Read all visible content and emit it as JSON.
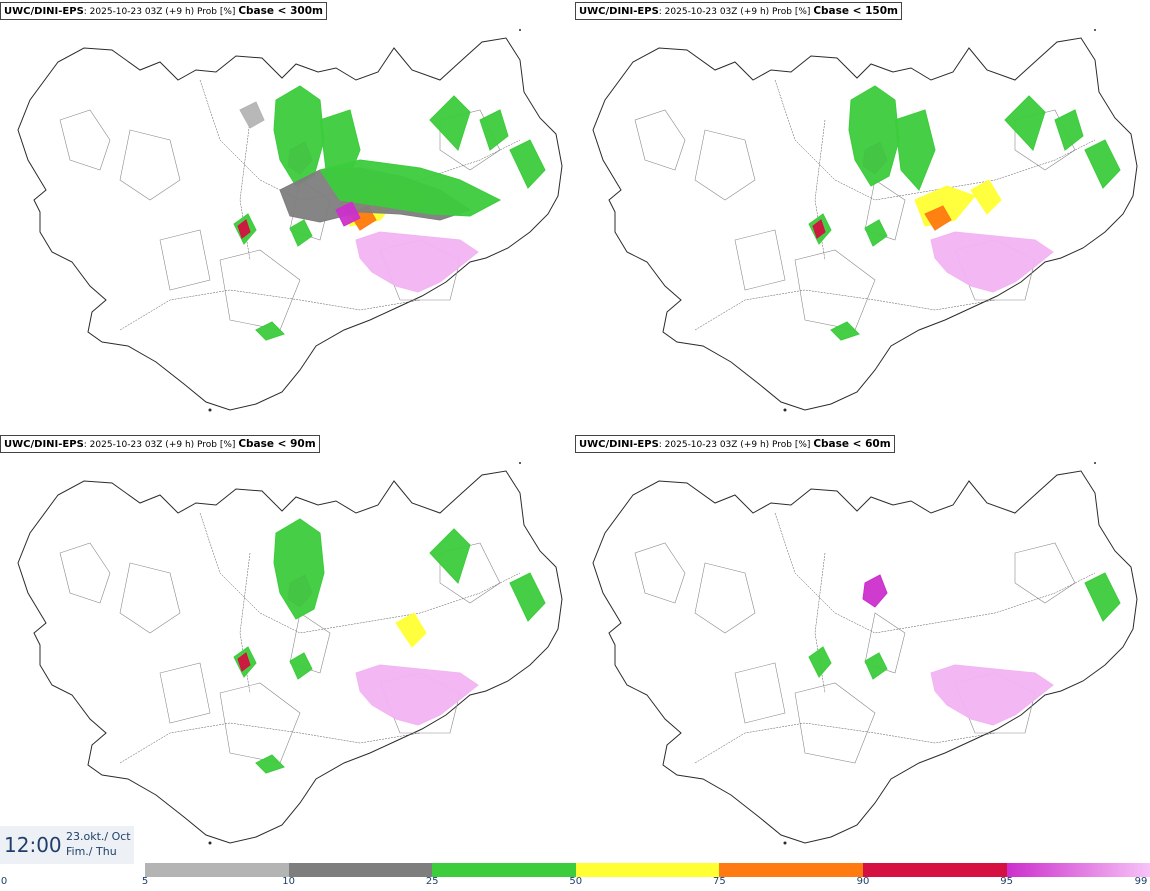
{
  "panels": [
    {
      "model": "UWC/DINI-EPS",
      "info": ": 2025-10-23 03Z (+9 h) Prob [%]",
      "threshold": "Cbase < 300m",
      "coverage": 4
    },
    {
      "model": "UWC/DINI-EPS",
      "info": ": 2025-10-23 03Z (+9 h) Prob [%]",
      "threshold": "Cbase < 150m",
      "coverage": 3
    },
    {
      "model": "UWC/DINI-EPS",
      "info": ": 2025-10-23 03Z (+9 h) Prob [%]",
      "threshold": "Cbase < 90m",
      "coverage": 2
    },
    {
      "model": "UWC/DINI-EPS",
      "info": ": 2025-10-23 03Z (+9 h) Prob [%]",
      "threshold": "Cbase < 60m",
      "coverage": 1
    }
  ],
  "time": {
    "hour": "12:00",
    "date": "23.okt./ Oct",
    "weekday": "Fim./ Thu"
  },
  "legend": {
    "ticks": [
      "0",
      "5",
      "10",
      "25",
      "50",
      "75",
      "90",
      "95",
      "99"
    ],
    "colors": [
      {
        "from": "5",
        "to": "10",
        "color": "#b4b4b4"
      },
      {
        "from": "10",
        "to": "25",
        "color": "#7e7e7e"
      },
      {
        "from": "25",
        "to": "50",
        "color": "#3ccc3c"
      },
      {
        "from": "50",
        "to": "75",
        "color": "#ffff33"
      },
      {
        "from": "75",
        "to": "90",
        "color": "#ff7a10"
      },
      {
        "from": "90",
        "to": "95",
        "color": "#d41140"
      },
      {
        "from": "95",
        "to": "99",
        "color": "#cc2fcc",
        "to_color": "#f7c4f7"
      }
    ]
  }
}
